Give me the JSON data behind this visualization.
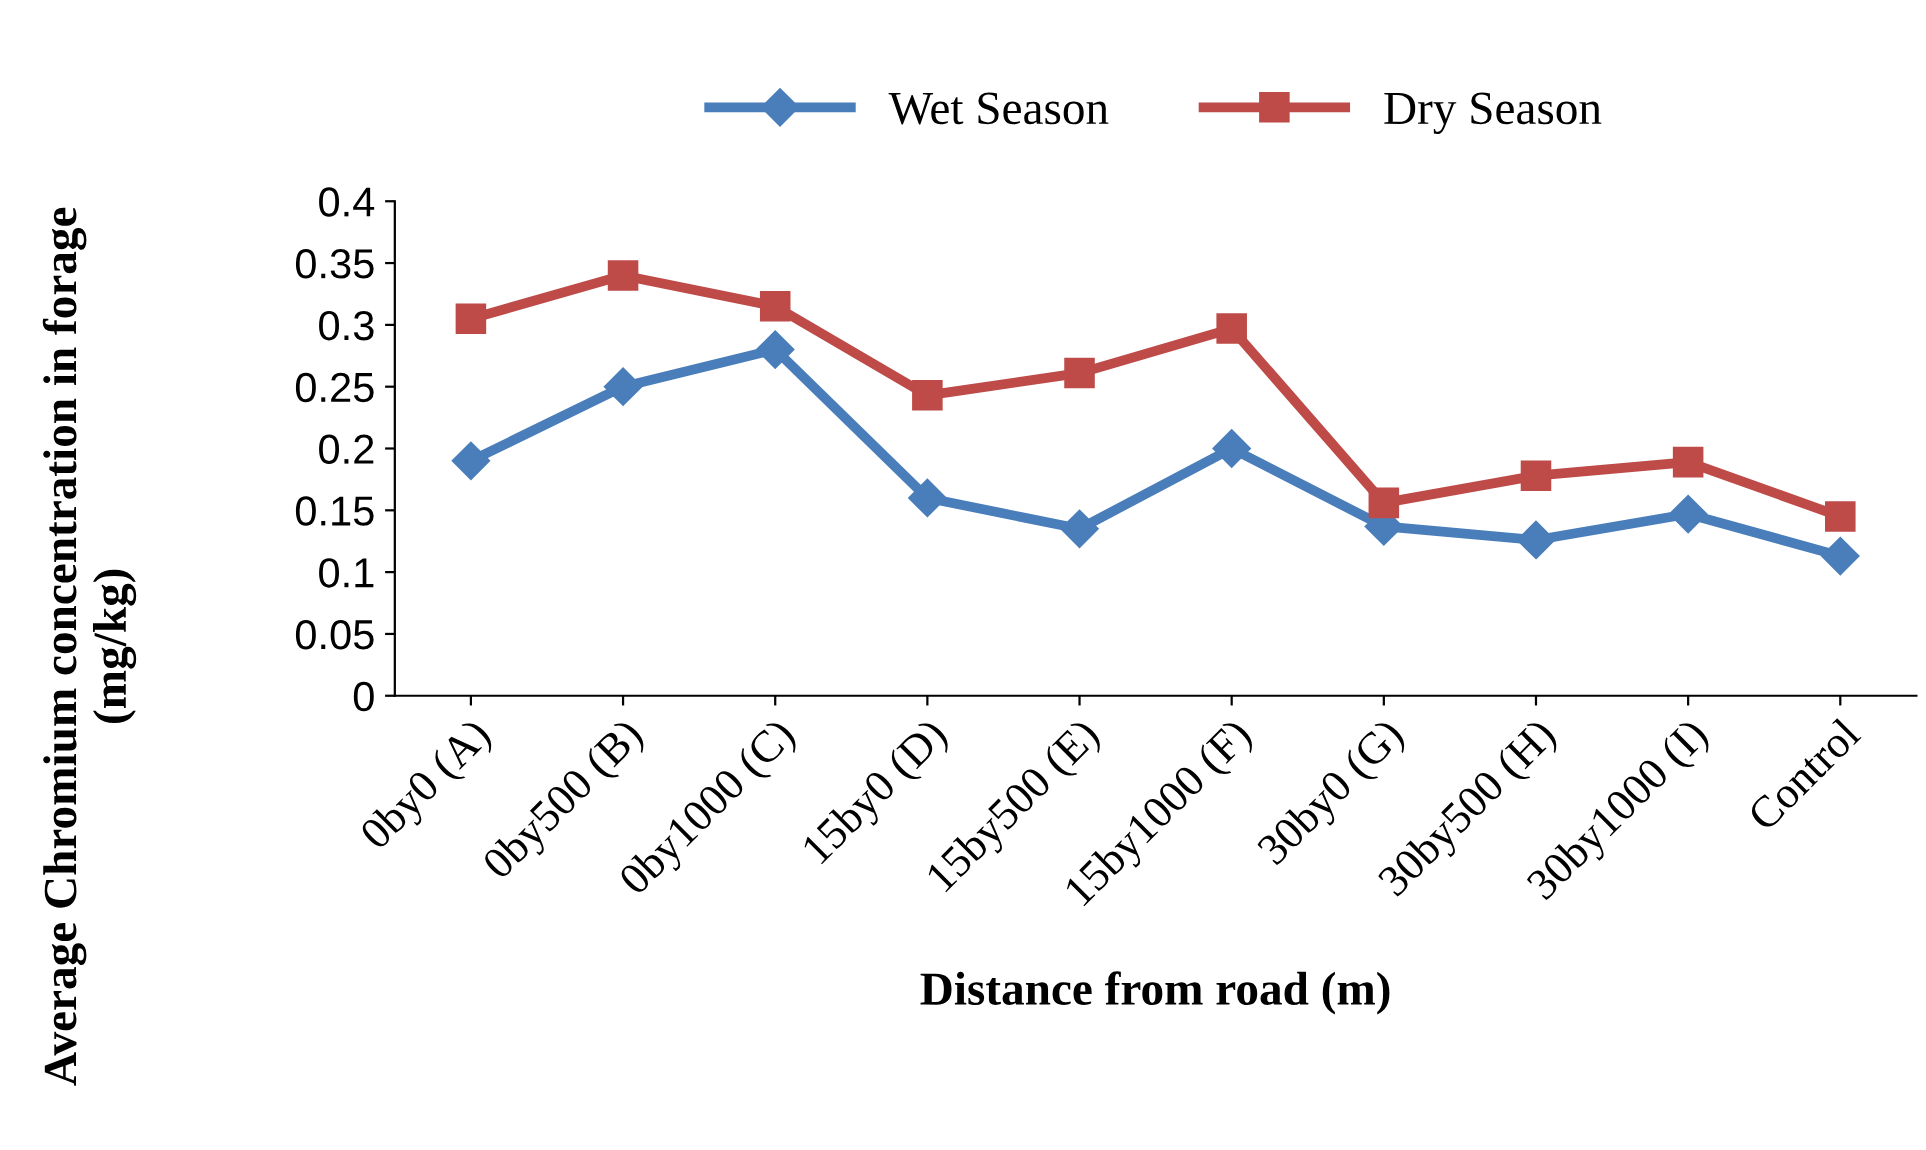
{
  "chart_data": {
    "type": "line",
    "xlabel": "Distance from road (m)",
    "ylabel": "Average Chromium concentration in forage (mg/kg)",
    "categories": [
      "0by0 (A)",
      "0by500 (B)",
      "0by1000 (C)",
      "15by0 (D)",
      "15by500 (E)",
      "15by1000 (F)",
      "30by0 (G)",
      "30by500 (H)",
      "30by1000 (I)",
      "Control"
    ],
    "series": [
      {
        "name": "Wet Season",
        "color": "#4a7ebb",
        "marker": "diamond",
        "values": [
          0.19,
          0.25,
          0.28,
          0.16,
          0.135,
          0.2,
          0.137,
          0.126,
          0.147,
          0.113
        ]
      },
      {
        "name": "Dry Season",
        "color": "#be4b48",
        "marker": "square",
        "values": [
          0.305,
          0.34,
          0.315,
          0.243,
          0.261,
          0.297,
          0.156,
          0.178,
          0.189,
          0.145
        ]
      }
    ],
    "ylim": [
      0,
      0.4
    ],
    "yticks": [
      0,
      0.05,
      0.1,
      0.15,
      0.2,
      0.25,
      0.3,
      0.35,
      0.4
    ],
    "grid": false,
    "legend": "top",
    "line_style": "solid"
  }
}
